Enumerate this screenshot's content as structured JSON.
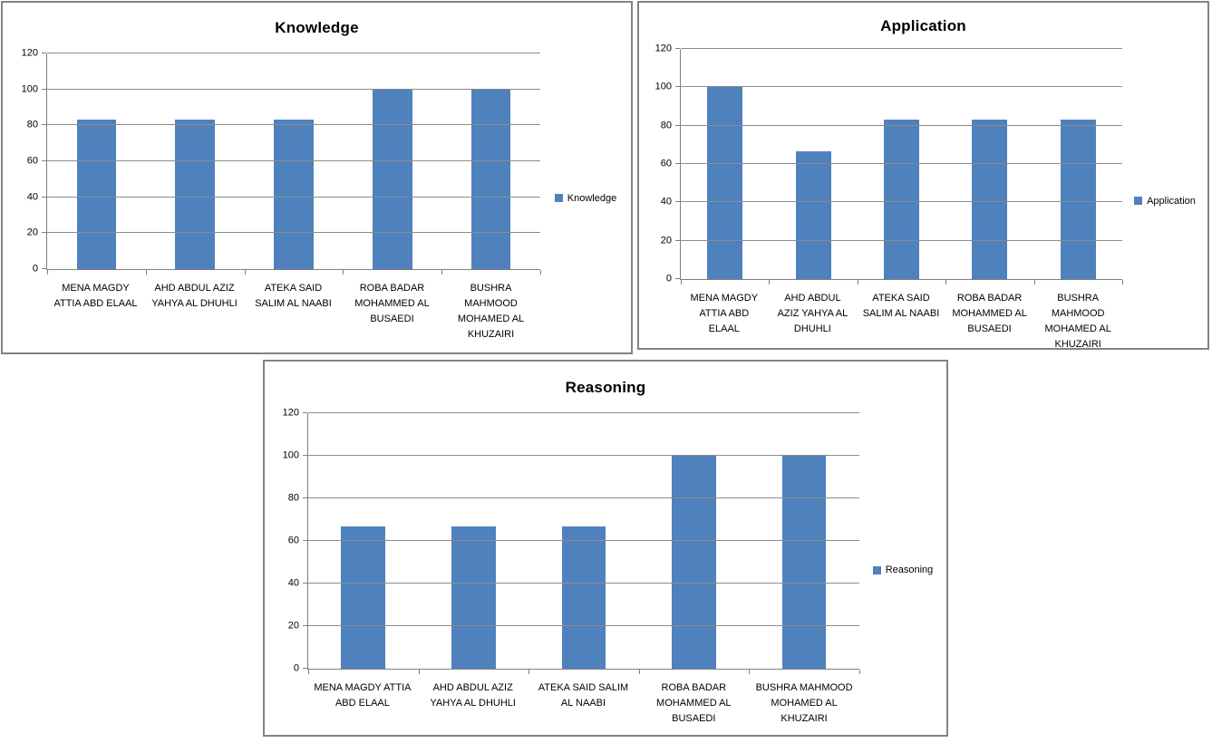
{
  "page": {
    "background": "#ffffff",
    "frame_border_color": "#838383",
    "gridline_color": "#8c8c8c",
    "axis_color": "#7f7f7f",
    "text_color": "#000000",
    "accent_color": "#4F81BD"
  },
  "chart_data": [
    {
      "type": "bar",
      "title": "Knowledge",
      "categories": [
        "MENA MAGDY ATTIA ABD ELAAL",
        "AHD ABDUL AZIZ YAHYA AL DHUHLI",
        "ATEKA SAID SALIM AL NAABI",
        "ROBA BADAR MOHAMMED AL BUSAEDI",
        "BUSHRA MAHMOOD MOHAMED AL KHUZAIRI"
      ],
      "series": [
        {
          "name": "Knowledge",
          "color": "#4F81BD",
          "values": [
            83.33,
            83.33,
            83.33,
            100,
            100
          ]
        }
      ],
      "ylim": [
        0,
        120
      ],
      "ytick_step": 20,
      "yticks": [
        0,
        20,
        40,
        60,
        80,
        100,
        120
      ],
      "grid": true,
      "legend_position": "right",
      "xlabel": "",
      "ylabel": ""
    },
    {
      "type": "bar",
      "title": "Application",
      "categories": [
        "MENA MAGDY ATTIA ABD ELAAL",
        "AHD ABDUL AZIZ YAHYA AL DHUHLI",
        "ATEKA SAID SALIM AL NAABI",
        "ROBA BADAR MOHAMMED AL BUSAEDI",
        "BUSHRA MAHMOOD MOHAMED AL KHUZAIRI"
      ],
      "series": [
        {
          "name": "Application",
          "color": "#4F81BD",
          "values": [
            100,
            66.67,
            83.33,
            83.33,
            83.33
          ]
        }
      ],
      "ylim": [
        0,
        120
      ],
      "ytick_step": 20,
      "yticks": [
        0,
        20,
        40,
        60,
        80,
        100,
        120
      ],
      "grid": true,
      "legend_position": "right",
      "xlabel": "",
      "ylabel": ""
    },
    {
      "type": "bar",
      "title": "Reasoning",
      "categories": [
        "MENA MAGDY ATTIA ABD ELAAL",
        "AHD ABDUL AZIZ YAHYA AL DHUHLI",
        "ATEKA SAID SALIM AL NAABI",
        "ROBA BADAR MOHAMMED AL BUSAEDI",
        "BUSHRA MAHMOOD MOHAMED AL KHUZAIRI"
      ],
      "series": [
        {
          "name": "Reasoning",
          "color": "#4F81BD",
          "values": [
            66.67,
            66.67,
            66.67,
            100,
            100
          ]
        }
      ],
      "ylim": [
        0,
        120
      ],
      "ytick_step": 20,
      "yticks": [
        0,
        20,
        40,
        60,
        80,
        100,
        120
      ],
      "grid": true,
      "legend_position": "right",
      "xlabel": "",
      "ylabel": ""
    }
  ]
}
